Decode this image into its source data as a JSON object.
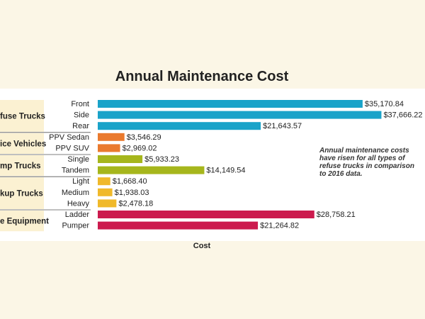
{
  "chart_data": {
    "type": "bar",
    "orientation": "horizontal",
    "title": "Annual Maintenance Cost",
    "xlabel": "Cost",
    "ylabel": "",
    "xlim": [
      0,
      38000
    ],
    "grid": false,
    "legend": "none",
    "groups": [
      {
        "name": "fuse Trucks",
        "color": "#1aa3c9",
        "items": [
          {
            "label": "Front",
            "value": 35170.84,
            "value_label": "$35,170.84"
          },
          {
            "label": "Side",
            "value": 37666.22,
            "value_label": "$37,666.22"
          },
          {
            "label": "Rear",
            "value": 21643.57,
            "value_label": "$21,643.57"
          }
        ]
      },
      {
        "name": "ice Vehicles",
        "color": "#ea7a2e",
        "items": [
          {
            "label": "PPV Sedan",
            "value": 3546.29,
            "value_label": "$3,546.29"
          },
          {
            "label": "PPV SUV",
            "value": 2969.02,
            "value_label": "$2,969.02"
          }
        ]
      },
      {
        "name": "mp Trucks",
        "color": "#a6b61c",
        "items": [
          {
            "label": "Single",
            "value": 5933.23,
            "value_label": "$5,933.23"
          },
          {
            "label": "Tandem",
            "value": 14149.54,
            "value_label": "$14,149.54"
          }
        ]
      },
      {
        "name": "kup Trucks",
        "color": "#f0b92a",
        "items": [
          {
            "label": "Light",
            "value": 1668.4,
            "value_label": "$1,668.40"
          },
          {
            "label": "Medium",
            "value": 1938.03,
            "value_label": "$1,938.03"
          },
          {
            "label": "Heavy",
            "value": 2478.18,
            "value_label": "$2,478.18"
          }
        ]
      },
      {
        "name": "e Equipment",
        "color": "#cc1b4e",
        "items": [
          {
            "label": "Ladder",
            "value": 28758.21,
            "value_label": "$28,758.21"
          },
          {
            "label": "Pumper",
            "value": 21264.82,
            "value_label": "$21,264.82"
          }
        ]
      }
    ],
    "annotation": [
      "Annual maintenance costs",
      "have risen for all types of",
      "refuse trucks in comparison",
      "to 2016 data."
    ]
  }
}
